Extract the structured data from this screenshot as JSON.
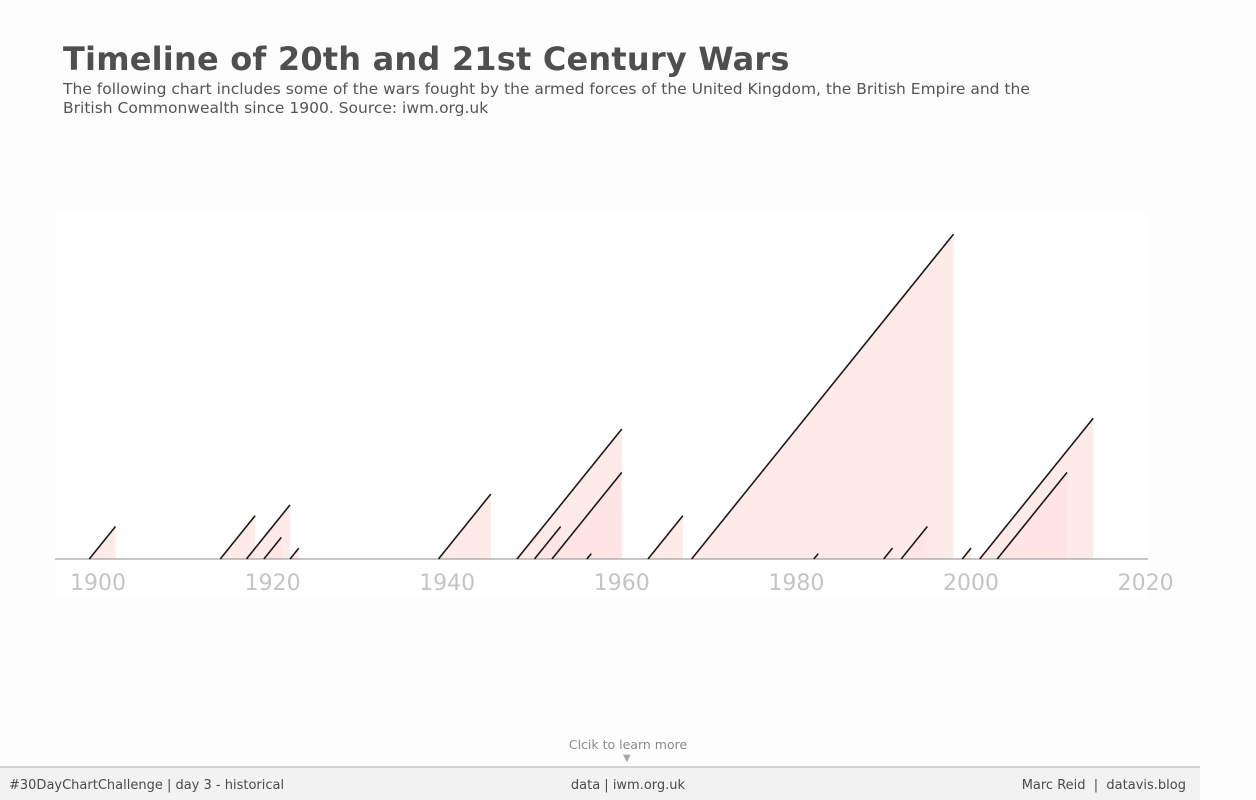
{
  "header": {
    "title": "Timeline of 20th and 21st Century Wars",
    "subtitle": "The following chart includes some of the wars fought by the armed forces of the United Kingdom, the British Empire and the British Commonwealth since 1900. Source: iwm.org.uk"
  },
  "cta": {
    "learn_more": "Clcik to learn more"
  },
  "footer": {
    "left": "#30DayChartChallenge | day 3 - historical",
    "center": "data | iwm.org.uk",
    "right": "Marc Reid  |  datavis.blog"
  },
  "colors": {
    "fill": "#fde3e0",
    "line": "#1a1a1a",
    "axis": "#8c8c8c",
    "tick_label": "#c4c4c4",
    "title": "#4f4f4f"
  },
  "chart_data": {
    "type": "area",
    "description_of_encoding": "each war is a triangle starting at its start year and rising to its end year; height proportional to duration",
    "xlim": [
      1895,
      2024
    ],
    "xticks": [
      1900,
      1920,
      1940,
      1960,
      1980,
      2000,
      2020
    ],
    "grid": false,
    "legend": "none",
    "series": [
      {
        "start": 1899,
        "end": 1902
      },
      {
        "start": 1914,
        "end": 1918
      },
      {
        "start": 1917,
        "end": 1922
      },
      {
        "start": 1919,
        "end": 1921
      },
      {
        "start": 1922,
        "end": 1923
      },
      {
        "start": 1939,
        "end": 1945
      },
      {
        "start": 1948,
        "end": 1960
      },
      {
        "start": 1950,
        "end": 1953
      },
      {
        "start": 1952,
        "end": 1960
      },
      {
        "start": 1956,
        "end": 1956.5
      },
      {
        "start": 1963,
        "end": 1967
      },
      {
        "start": 1968,
        "end": 1998
      },
      {
        "start": 1982,
        "end": 1982.5
      },
      {
        "start": 1990,
        "end": 1991
      },
      {
        "start": 1992,
        "end": 1995
      },
      {
        "start": 1999,
        "end": 2000
      },
      {
        "start": 2001,
        "end": 2014
      },
      {
        "start": 2003,
        "end": 2011
      }
    ]
  }
}
